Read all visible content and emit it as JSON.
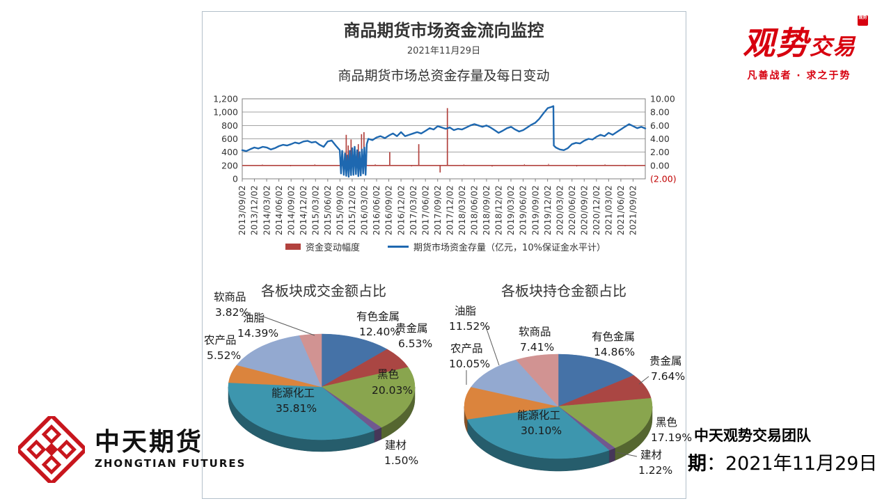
{
  "header": {
    "title": "商品期货市场资金流向监控",
    "date": "2021年11月29日"
  },
  "brand_top_right": {
    "logo_part1": "观势",
    "logo_part2": "交易",
    "seal_text": "观势",
    "tagline": "凡善战者 · 求之于势",
    "color": "#d7000f"
  },
  "brand_bottom_left": {
    "name_cn": "中天期货",
    "name_en": "ZHONGTIAN FUTURES",
    "logo_color": "#c8161d"
  },
  "footer_right": {
    "team": "中天观势交易团队",
    "date_label": "期",
    "date_colon": "：",
    "date_value": "2021年11月29日"
  },
  "chart_data": [
    {
      "type": "line",
      "title": "商品期货市场总资金存量及每日变动",
      "x_start": "2013/09/02",
      "x_end": "2021/11/29",
      "x_tick_labels": [
        "2013/09/02",
        "2013/12/02",
        "2014/03/02",
        "2014/06/02",
        "2014/09/02",
        "2014/12/02",
        "2015/03/02",
        "2015/06/02",
        "2015/09/02",
        "2015/12/02",
        "2016/03/02",
        "2016/06/02",
        "2016/09/02",
        "2016/12/02",
        "2017/03/02",
        "2017/06/02",
        "2017/09/02",
        "2017/12/02",
        "2018/03/02",
        "2018/06/02",
        "2018/09/02",
        "2018/12/02",
        "2019/03/02",
        "2019/06/02",
        "2019/09/02",
        "2019/12/02",
        "2020/03/02",
        "2020/06/02",
        "2020/09/02",
        "2020/12/02",
        "2021/03/02",
        "2021/06/02",
        "2021/09/02"
      ],
      "left_axis": {
        "min": 0,
        "max": 1200,
        "ticks": [
          "0",
          "200",
          "400",
          "600",
          "800",
          "1,000",
          "1,200"
        ]
      },
      "right_axis": {
        "min": -2,
        "max": 10,
        "ticks": [
          "(2.00)",
          "0.00",
          "2.00",
          "4.00",
          "6.00",
          "8.00",
          "10.00"
        ],
        "negative_color": "#c00000"
      },
      "grid": true,
      "legend_position": "bottom",
      "series": [
        {
          "name": "资金变动幅度",
          "type": "spikes",
          "axis": "right",
          "color": "#b2423e",
          "baseline": 0,
          "spikes": [
            [
              0.258,
              4.6
            ],
            [
              0.263,
              3.0
            ],
            [
              0.27,
              3.9
            ],
            [
              0.278,
              2.5
            ],
            [
              0.288,
              3.2
            ],
            [
              0.296,
              4.7
            ],
            [
              0.302,
              5.0
            ],
            [
              0.308,
              2.3
            ],
            [
              0.366,
              2.0
            ],
            [
              0.438,
              3.2
            ],
            [
              0.491,
              -1.05
            ],
            [
              0.509,
              8.6
            ]
          ],
          "noise": [
            [
              0.05,
              0.15
            ],
            [
              0.12,
              -0.12
            ],
            [
              0.18,
              0.18
            ],
            [
              0.33,
              0.2
            ],
            [
              0.42,
              -0.15
            ],
            [
              0.55,
              0.15
            ],
            [
              0.62,
              -0.18
            ],
            [
              0.7,
              0.2
            ],
            [
              0.76,
              0.25
            ],
            [
              0.83,
              -0.15
            ],
            [
              0.9,
              0.18
            ],
            [
              0.95,
              -0.12
            ]
          ]
        },
        {
          "name": "期货市场资金存量（亿元，10%保证金水平计）",
          "type": "line",
          "axis": "left",
          "color": "#1e68b0",
          "points": [
            [
              0,
              430
            ],
            [
              0.01,
              415
            ],
            [
              0.02,
              445
            ],
            [
              0.03,
              470
            ],
            [
              0.04,
              455
            ],
            [
              0.051,
              480
            ],
            [
              0.061,
              470
            ],
            [
              0.071,
              440
            ],
            [
              0.081,
              460
            ],
            [
              0.091,
              490
            ],
            [
              0.101,
              510
            ],
            [
              0.111,
              500
            ],
            [
              0.121,
              520
            ],
            [
              0.131,
              545
            ],
            [
              0.141,
              530
            ],
            [
              0.152,
              560
            ],
            [
              0.162,
              570
            ],
            [
              0.172,
              545
            ],
            [
              0.182,
              555
            ],
            [
              0.192,
              510
            ],
            [
              0.202,
              480
            ],
            [
              0.212,
              560
            ],
            [
              0.222,
              575
            ],
            [
              0.232,
              500
            ],
            [
              0.242,
              430
            ],
            [
              0.245,
              80
            ],
            [
              0.248,
              420
            ],
            [
              0.252,
              60
            ],
            [
              0.255,
              380
            ],
            [
              0.258,
              45
            ],
            [
              0.261,
              350
            ],
            [
              0.264,
              30
            ],
            [
              0.267,
              420
            ],
            [
              0.27,
              55
            ],
            [
              0.273,
              460
            ],
            [
              0.276,
              60
            ],
            [
              0.279,
              480
            ],
            [
              0.282,
              70
            ],
            [
              0.285,
              430
            ],
            [
              0.288,
              40
            ],
            [
              0.291,
              400
            ],
            [
              0.294,
              50
            ],
            [
              0.297,
              440
            ],
            [
              0.3,
              80
            ],
            [
              0.303,
              470
            ],
            [
              0.306,
              60
            ],
            [
              0.309,
              520
            ],
            [
              0.312,
              580
            ],
            [
              0.313,
              600
            ],
            [
              0.323,
              580
            ],
            [
              0.333,
              620
            ],
            [
              0.343,
              640
            ],
            [
              0.354,
              610
            ],
            [
              0.364,
              650
            ],
            [
              0.374,
              680
            ],
            [
              0.384,
              640
            ],
            [
              0.394,
              700
            ],
            [
              0.404,
              640
            ],
            [
              0.414,
              660
            ],
            [
              0.424,
              680
            ],
            [
              0.434,
              700
            ],
            [
              0.444,
              680
            ],
            [
              0.455,
              720
            ],
            [
              0.465,
              760
            ],
            [
              0.475,
              740
            ],
            [
              0.485,
              790
            ],
            [
              0.495,
              770
            ],
            [
              0.505,
              750
            ],
            [
              0.515,
              770
            ],
            [
              0.525,
              730
            ],
            [
              0.535,
              750
            ],
            [
              0.545,
              740
            ],
            [
              0.556,
              770
            ],
            [
              0.566,
              800
            ],
            [
              0.576,
              820
            ],
            [
              0.586,
              800
            ],
            [
              0.596,
              780
            ],
            [
              0.606,
              800
            ],
            [
              0.616,
              770
            ],
            [
              0.626,
              730
            ],
            [
              0.636,
              690
            ],
            [
              0.646,
              720
            ],
            [
              0.657,
              760
            ],
            [
              0.667,
              780
            ],
            [
              0.677,
              740
            ],
            [
              0.687,
              710
            ],
            [
              0.697,
              730
            ],
            [
              0.707,
              770
            ],
            [
              0.717,
              810
            ],
            [
              0.727,
              840
            ],
            [
              0.737,
              900
            ],
            [
              0.747,
              980
            ],
            [
              0.758,
              1060
            ],
            [
              0.768,
              1080
            ],
            [
              0.772,
              1090
            ],
            [
              0.773,
              500
            ],
            [
              0.778,
              470
            ],
            [
              0.788,
              440
            ],
            [
              0.798,
              430
            ],
            [
              0.808,
              460
            ],
            [
              0.818,
              520
            ],
            [
              0.828,
              540
            ],
            [
              0.838,
              530
            ],
            [
              0.848,
              570
            ],
            [
              0.859,
              600
            ],
            [
              0.869,
              590
            ],
            [
              0.879,
              630
            ],
            [
              0.889,
              660
            ],
            [
              0.899,
              640
            ],
            [
              0.909,
              690
            ],
            [
              0.919,
              660
            ],
            [
              0.929,
              700
            ],
            [
              0.939,
              740
            ],
            [
              0.949,
              780
            ],
            [
              0.96,
              820
            ],
            [
              0.97,
              790
            ],
            [
              0.98,
              760
            ],
            [
              0.99,
              780
            ],
            [
              1,
              755
            ]
          ]
        }
      ]
    },
    {
      "type": "pie",
      "title": "各板块成交金额占比",
      "slices": [
        {
          "label": "有色金属",
          "value": 12.4,
          "text": "12.40%",
          "color": "#4572a7"
        },
        {
          "label": "贵金属",
          "value": 6.53,
          "text": "6.53%",
          "color": "#aa4643"
        },
        {
          "label": "黑色",
          "value": 20.03,
          "text": "20.03%",
          "color": "#89a54e"
        },
        {
          "label": "建材",
          "value": 1.5,
          "text": "1.50%",
          "color": "#71588f"
        },
        {
          "label": "能源化工",
          "value": 35.81,
          "text": "35.81%",
          "color": "#3d96ae"
        },
        {
          "label": "农产品",
          "value": 5.52,
          "text": "5.52%",
          "color": "#db843d"
        },
        {
          "label": "油脂",
          "value": 14.39,
          "text": "14.39%",
          "color": "#93a9d0"
        },
        {
          "label": "软商品",
          "value": 3.82,
          "text": "3.82%",
          "color": "#d19392"
        }
      ]
    },
    {
      "type": "pie",
      "title": "各板块持仓金额占比",
      "slices": [
        {
          "label": "有色金属",
          "value": 14.86,
          "text": "14.86%",
          "color": "#4572a7"
        },
        {
          "label": "贵金属",
          "value": 7.64,
          "text": "7.64%",
          "color": "#aa4643"
        },
        {
          "label": "黑色",
          "value": 17.19,
          "text": "17.19%",
          "color": "#89a54e"
        },
        {
          "label": "建材",
          "value": 1.22,
          "text": "1.22%",
          "color": "#71588f"
        },
        {
          "label": "能源化工",
          "value": 30.1,
          "text": "30.10%",
          "color": "#3d96ae"
        },
        {
          "label": "农产品",
          "value": 10.05,
          "text": "10.05%",
          "color": "#db843d"
        },
        {
          "label": "油脂",
          "value": 11.52,
          "text": "11.52%",
          "color": "#93a9d0"
        },
        {
          "label": "软商品",
          "value": 7.41,
          "text": "7.41%",
          "color": "#d19392"
        }
      ]
    }
  ]
}
